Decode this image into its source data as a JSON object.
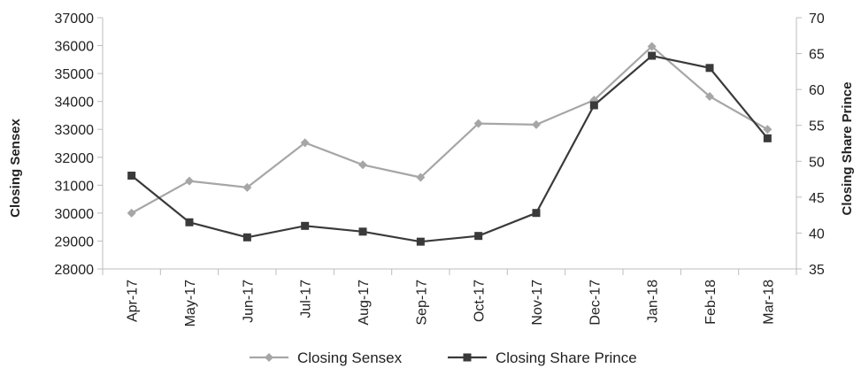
{
  "chart_data": {
    "type": "line",
    "title": "",
    "categories": [
      "Apr-17",
      "May-17",
      "Jun-17",
      "Jul-17",
      "Aug-17",
      "Sep-17",
      "Oct-17",
      "Nov-17",
      "Dec-17",
      "Jan-18",
      "Feb-18",
      "Mar-18"
    ],
    "ylabel": "Closing  Sensex",
    "y2label": "Closing  Share Prince",
    "ylim": [
      28000,
      37000
    ],
    "y2lim": [
      35,
      70
    ],
    "yticks": [
      "28000",
      "29000",
      "30000",
      "31000",
      "32000",
      "33000",
      "34000",
      "35000",
      "36000",
      "37000"
    ],
    "y2ticks": [
      "35",
      "40",
      "45",
      "50",
      "55",
      "60",
      "65",
      "70"
    ],
    "grid": false,
    "legend_position": "bottom",
    "series": [
      {
        "name": "Closing  Sensex",
        "axis": "left",
        "color": "#a6a6a6",
        "marker": "diamond",
        "values": [
          30000,
          31150,
          30920,
          32520,
          31730,
          31280,
          33210,
          33170,
          34050,
          35970,
          34180,
          33000
        ]
      },
      {
        "name": "Closing  Share Prince",
        "axis": "right",
        "color": "#3a3a3a",
        "marker": "square",
        "values": [
          48.0,
          41.5,
          39.4,
          41.0,
          40.2,
          38.8,
          39.6,
          42.8,
          57.8,
          64.7,
          63.0,
          53.2
        ]
      }
    ]
  }
}
